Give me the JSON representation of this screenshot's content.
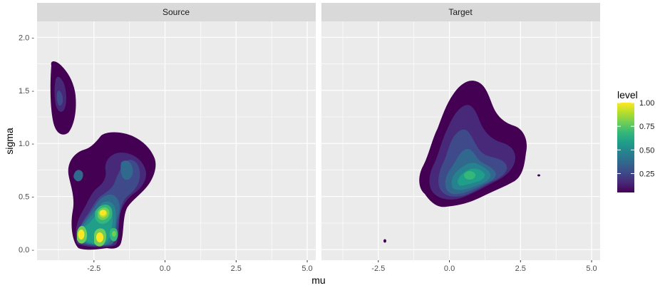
{
  "chart_data": {
    "type": "contour",
    "facets": [
      "Source",
      "Target"
    ],
    "xlabel": "mu",
    "ylabel": "sigma",
    "xlim": [
      -4.5,
      5.3
    ],
    "ylim": [
      -0.1,
      2.15
    ],
    "x_ticks": [
      -2.5,
      0.0,
      2.5,
      5.0
    ],
    "x_tick_labels": [
      "-2.5",
      "0.0",
      "2.5",
      "5.0"
    ],
    "y_ticks": [
      0.0,
      0.5,
      1.0,
      1.5,
      2.0
    ],
    "y_tick_labels": [
      "0.0 -",
      "0.5 -",
      "1.0 -",
      "1.5 -",
      "2.0 -"
    ],
    "legend": {
      "title": "level",
      "breaks": [
        1.0,
        0.75,
        0.5,
        0.25
      ],
      "labels": [
        "1.00",
        "0.75",
        "0.50",
        "0.25"
      ],
      "range": [
        0.05,
        1.0
      ],
      "colors": [
        "#440154",
        "#482878",
        "#3e4a89",
        "#31688e",
        "#26828e",
        "#1f9e89",
        "#35b779",
        "#6ece58",
        "#b5de2b",
        "#fde725"
      ]
    },
    "density_modes": {
      "Source": [
        {
          "mu": -3.6,
          "sigma": 1.35,
          "level": 0.25
        },
        {
          "mu": -1.3,
          "sigma": 0.75,
          "level": 0.35
        },
        {
          "mu": -2.1,
          "sigma": 0.35,
          "level": 1.0
        },
        {
          "mu": -2.9,
          "sigma": 0.12,
          "level": 1.0
        },
        {
          "mu": -2.2,
          "sigma": 0.08,
          "level": 1.0
        },
        {
          "mu": -1.7,
          "sigma": 0.12,
          "level": 0.6
        }
      ],
      "Target": [
        {
          "mu": 0.8,
          "sigma": 0.68,
          "level": 0.55
        },
        {
          "mu": -2.2,
          "sigma": 0.07,
          "level": 0.05
        },
        {
          "mu": 3.3,
          "sigma": 0.67,
          "level": 0.05
        }
      ]
    },
    "panel_background": "#ebebeb",
    "strip_background": "#d9d9d9",
    "grid_color": "#ffffff"
  }
}
